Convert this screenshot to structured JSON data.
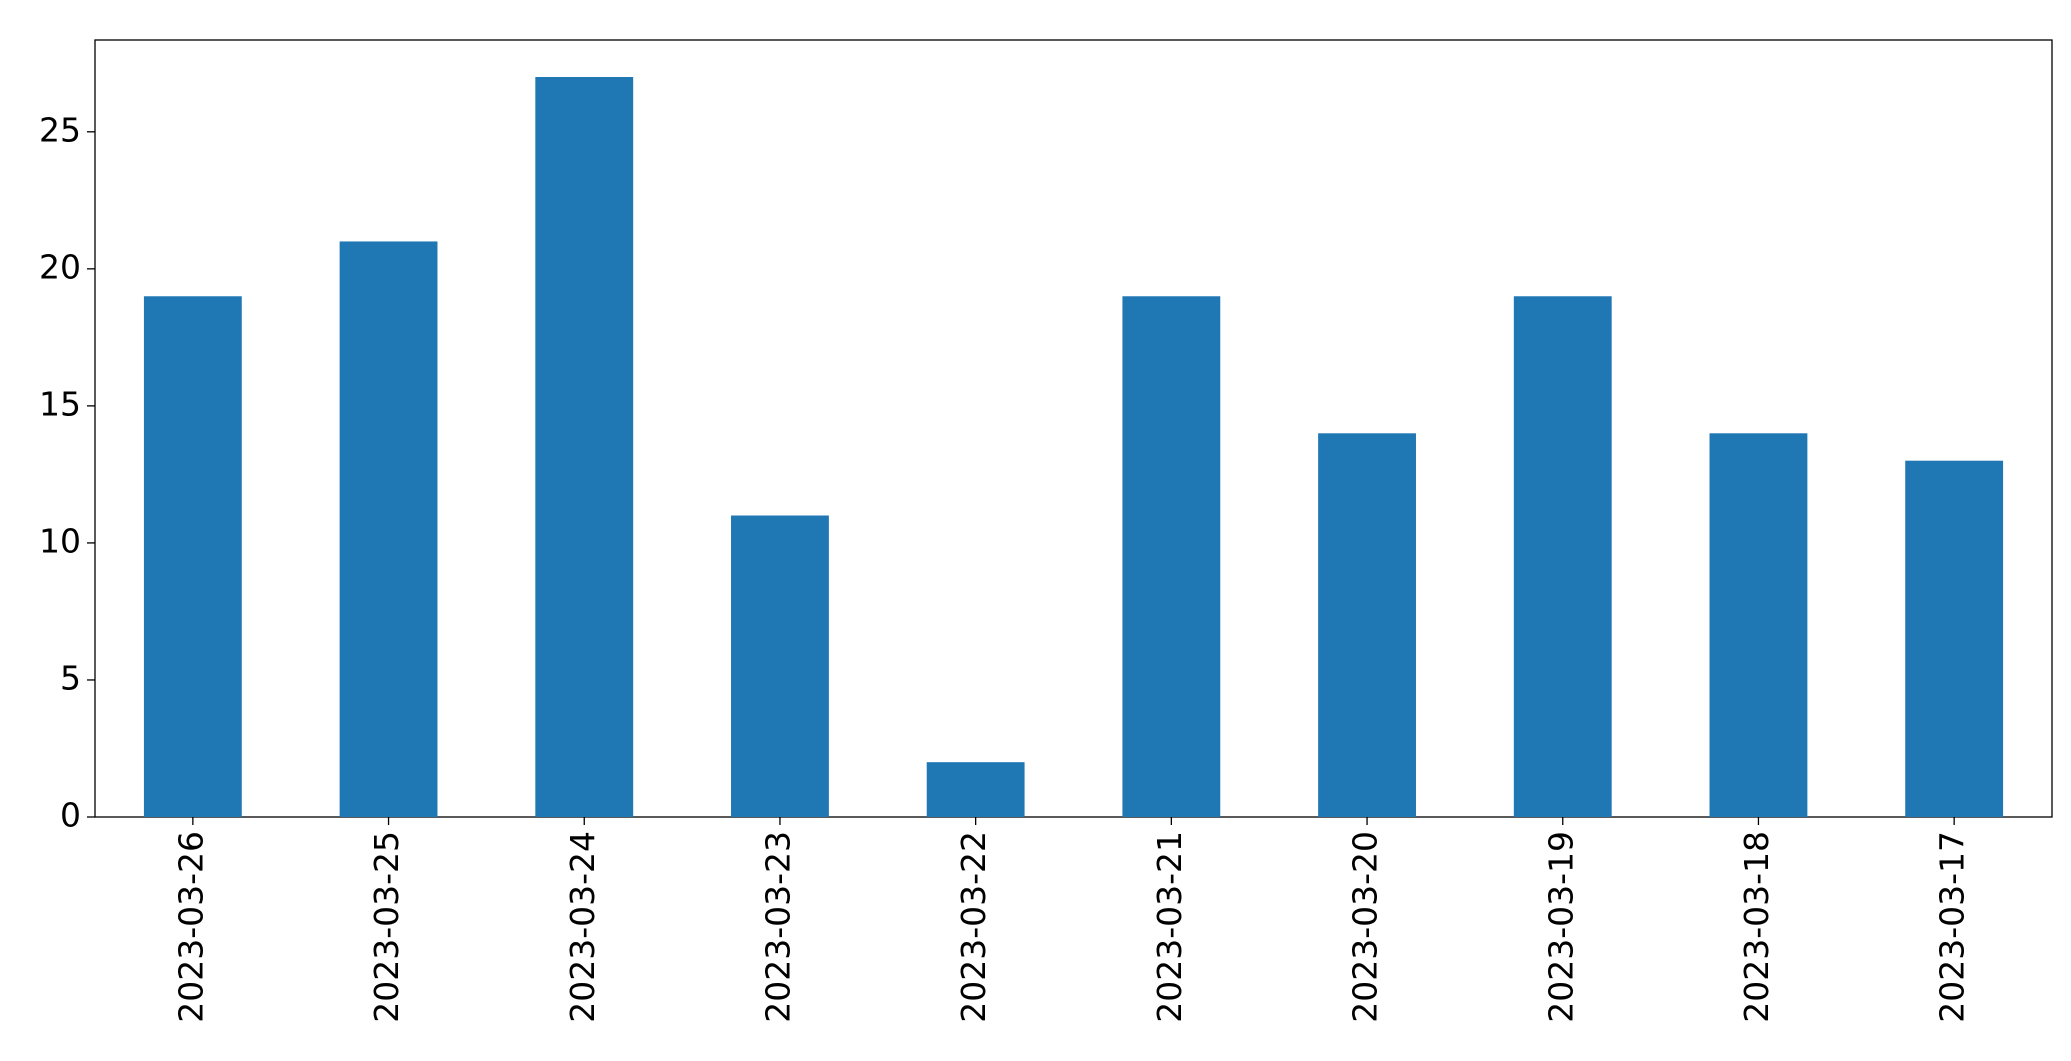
{
  "chart_data": {
    "type": "bar",
    "categories": [
      "2023-03-26",
      "2023-03-25",
      "2023-03-24",
      "2023-03-23",
      "2023-03-22",
      "2023-03-21",
      "2023-03-20",
      "2023-03-19",
      "2023-03-18",
      "2023-03-17"
    ],
    "values": [
      19,
      21,
      27,
      11,
      2,
      19,
      14,
      19,
      14,
      13
    ],
    "color": "#1f77b4",
    "ylim": [
      0,
      28.35
    ],
    "yticks": [
      0,
      5,
      10,
      15,
      20,
      25
    ],
    "grid": false
  }
}
